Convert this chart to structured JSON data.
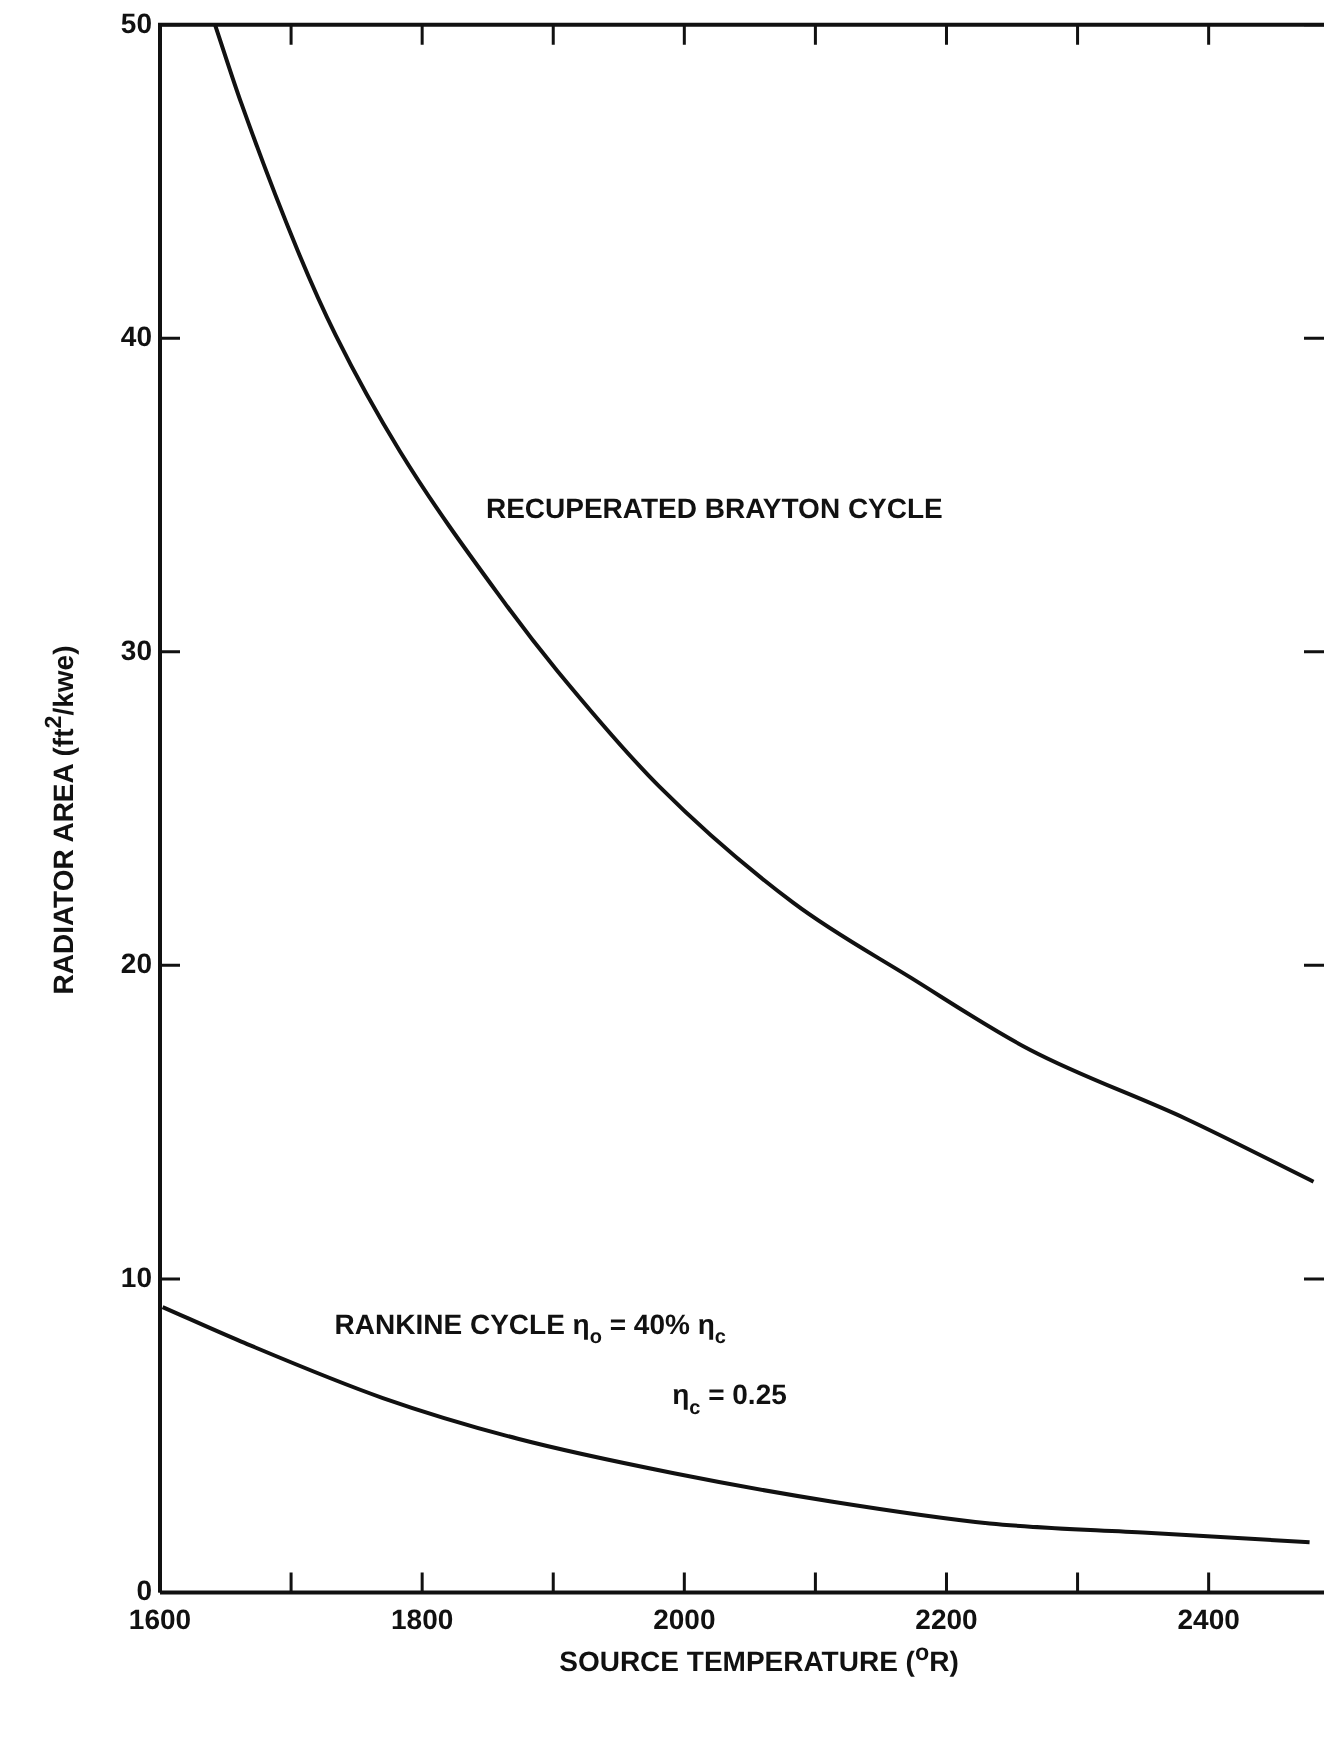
{
  "chart_data": {
    "type": "line",
    "xlabel": "SOURCE TEMPERATURE ($^{o}$R)",
    "ylabel": "RADIATOR AREA (ft$^{2}$/kwe)",
    "xlim": [
      1600,
      2488
    ],
    "ylim": [
      0,
      50
    ],
    "xticks": [
      1600,
      {
        "value": 1700,
        "label": null
      },
      1800,
      {
        "value": 1900,
        "label": null
      },
      2000,
      {
        "value": 2100,
        "label": null
      },
      2200,
      {
        "value": 2300,
        "label": null
      },
      2400
    ],
    "yticks": [
      0,
      10,
      20,
      30,
      40,
      50
    ],
    "grid": false,
    "legend": false,
    "marker": "none",
    "line_style": "solid",
    "series": [
      {
        "color": "#111111",
        "x": [
          1642,
          1662,
          1705,
          1734,
          1783,
          1864,
          1903,
          1981,
          2083,
          2173,
          2264,
          2383,
          2480
        ],
        "values": [
          50,
          47.5,
          42.8,
          40.1,
          36.4,
          31.5,
          29.4,
          25.7,
          22.0,
          19.6,
          17.3,
          15.1,
          13.1
        ]
      },
      {
        "color": "#111111",
        "x": [
          1602,
          1662,
          1770,
          1873,
          1992,
          2112,
          2233,
          2353,
          2477
        ],
        "values": [
          9.1,
          8.0,
          6.2,
          4.9,
          3.8,
          2.9,
          2.2,
          1.9,
          1.6
        ]
      }
    ],
    "annotations": [
      "RECUPERATED BRAYTON CYCLE",
      "RANKINE CYCLE η$_{o}$ = 40% η$_{c}$",
      "η$_{c}$ = 0.25"
    ]
  }
}
